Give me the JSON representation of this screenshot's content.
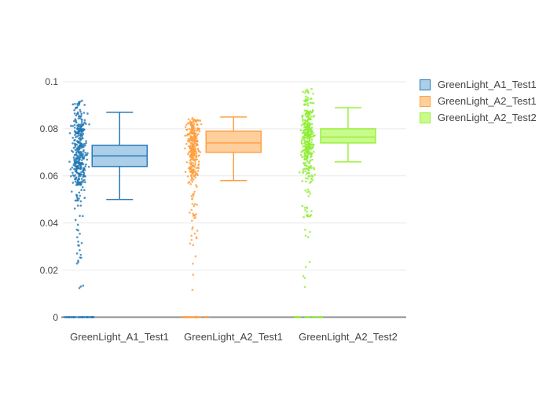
{
  "chart": {
    "background": "#ffffff",
    "grid_color": "#e9e9e9",
    "zero_line_color": "#8c8c8c",
    "text_color": "#444444"
  },
  "y_axis": {
    "ticks": [
      {
        "label": "0.1",
        "value": 0.1
      },
      {
        "label": "0.08",
        "value": 0.08
      },
      {
        "label": "0.06",
        "value": 0.06
      },
      {
        "label": "0.04",
        "value": 0.04
      },
      {
        "label": "0.02",
        "value": 0.02
      },
      {
        "label": "0",
        "value": 0
      }
    ]
  },
  "chart_data": {
    "type": "box",
    "subtype": "box-with-jittered-points",
    "orientation": "vertical",
    "title": "",
    "xlabel": "",
    "ylabel": "",
    "ylim": [
      0,
      0.1
    ],
    "grid": true,
    "legend_position": "right",
    "categories": [
      "GreenLight_A1_Test1",
      "GreenLight_A2_Test1",
      "GreenLight_A2_Test2"
    ],
    "series": [
      {
        "name": "GreenLight_A1_Test1",
        "line_color": "#2879b9",
        "fill_color": "#abcfe8",
        "point_color": "#1f77b4",
        "box": {
          "whisker_low": 0.05,
          "q1": 0.064,
          "median": 0.0685,
          "q3": 0.073,
          "whisker_high": 0.087
        },
        "points": {
          "bands": [
            {
              "min": 0.082,
              "max": 0.092,
              "count": 45
            },
            {
              "min": 0.074,
              "max": 0.082,
              "count": 85
            },
            {
              "min": 0.06,
              "max": 0.074,
              "count": 175
            },
            {
              "min": 0.056,
              "max": 0.06,
              "count": 40
            },
            {
              "min": 0.05,
              "max": 0.056,
              "count": 12
            }
          ],
          "tail": {
            "min": 0.004,
            "max": 0.05,
            "count": 30
          },
          "zero_count": 30
        }
      },
      {
        "name": "GreenLight_A2_Test1",
        "line_color": "#ffa045",
        "fill_color": "#fecf9b",
        "point_color": "#ff9e3c",
        "box": {
          "whisker_low": 0.058,
          "q1": 0.07,
          "median": 0.074,
          "q3": 0.079,
          "whisker_high": 0.085
        },
        "points": {
          "bands": [
            {
              "min": 0.08,
              "max": 0.085,
              "count": 45
            },
            {
              "min": 0.068,
              "max": 0.08,
              "count": 165
            },
            {
              "min": 0.059,
              "max": 0.068,
              "count": 75
            },
            {
              "min": 0.05,
              "max": 0.059,
              "count": 15
            }
          ],
          "tail": {
            "min": 0.004,
            "max": 0.05,
            "count": 28
          },
          "zero_count": 25
        }
      },
      {
        "name": "GreenLight_A2_Test2",
        "line_color": "#9bf13e",
        "fill_color": "#c9fa8c",
        "point_color": "#8cee2f",
        "box": {
          "whisker_low": 0.066,
          "q1": 0.074,
          "median": 0.0765,
          "q3": 0.08,
          "whisker_high": 0.089
        },
        "points": {
          "bands": [
            {
              "min": 0.089,
              "max": 0.097,
              "count": 30
            },
            {
              "min": 0.08,
              "max": 0.088,
              "count": 80
            },
            {
              "min": 0.068,
              "max": 0.08,
              "count": 165
            },
            {
              "min": 0.057,
              "max": 0.068,
              "count": 55
            }
          ],
          "tail": {
            "min": 0.004,
            "max": 0.055,
            "count": 30
          },
          "zero_count": 25
        }
      }
    ]
  }
}
